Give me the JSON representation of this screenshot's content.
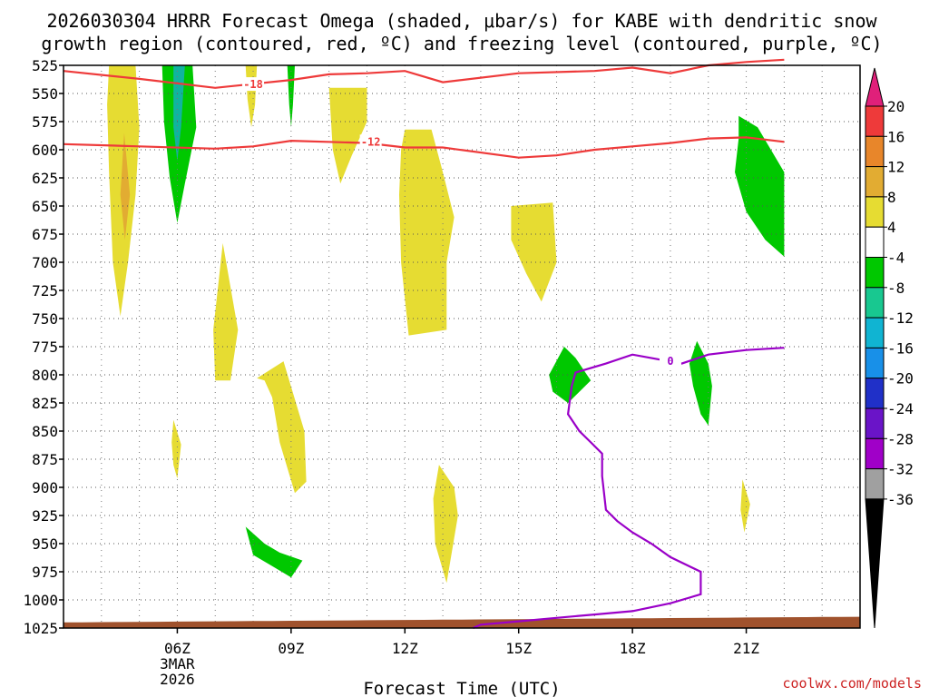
{
  "chart_data": {
    "type": "contour",
    "title_line1": "2026030304 HRRR Forecast Omega (shaded, μbar/s) for KABE with dendritic snow",
    "title_line2": "growth region (contoured, red, ºC) and freezing level (contoured, purple, ºC)",
    "xlabel": "Forecast Time (UTC)",
    "credit": "coolwx.com/models",
    "x_range_hours": [
      3,
      24
    ],
    "y_range_hpa": [
      525,
      1025
    ],
    "y_ticks": [
      525,
      550,
      575,
      600,
      625,
      650,
      675,
      700,
      725,
      750,
      775,
      800,
      825,
      850,
      875,
      900,
      925,
      950,
      975,
      1000,
      1025
    ],
    "x_ticks": [
      {
        "hour": 6,
        "label": "06Z"
      },
      {
        "hour": 9,
        "label": "09Z"
      },
      {
        "hour": 12,
        "label": "12Z"
      },
      {
        "hour": 15,
        "label": "15Z"
      },
      {
        "hour": 18,
        "label": "18Z"
      },
      {
        "hour": 21,
        "label": "21Z"
      }
    ],
    "date_labels": [
      "3MAR",
      "2026"
    ],
    "colorbar": {
      "labels": [
        "20",
        "16",
        "12",
        "8",
        "4",
        "-4",
        "-8",
        "-12",
        "-16",
        "-20",
        "-24",
        "-28",
        "-32",
        "-36"
      ],
      "colors": [
        "#ee3a3a",
        "#e8862a",
        "#e2ac32",
        "#e6dc32",
        "#ffffff",
        "#00c800",
        "#18c890",
        "#10b4d2",
        "#1890e8",
        "#2030c8",
        "#6a14c8",
        "#a000c8",
        "#a0a0a0"
      ],
      "top_color": "#e0207a",
      "bottom_color": "#000000"
    },
    "omega_regions": [
      {
        "name": "A",
        "level": "4",
        "points": [
          [
            4.2,
            525
          ],
          [
            4.9,
            525
          ],
          [
            5.0,
            580
          ],
          [
            4.9,
            640
          ],
          [
            4.7,
            700
          ],
          [
            4.5,
            748
          ],
          [
            4.3,
            700
          ],
          [
            4.2,
            620
          ],
          [
            4.15,
            560
          ]
        ]
      },
      {
        "name": "A-inner",
        "level": "8",
        "points": [
          [
            4.6,
            585
          ],
          [
            4.75,
            640
          ],
          [
            4.62,
            680
          ],
          [
            4.5,
            640
          ]
        ]
      },
      {
        "name": "B",
        "level": "-4",
        "points": [
          [
            5.6,
            525
          ],
          [
            6.4,
            525
          ],
          [
            6.5,
            580
          ],
          [
            6.2,
            630
          ],
          [
            6.0,
            665
          ],
          [
            5.8,
            625
          ],
          [
            5.65,
            575
          ]
        ]
      },
      {
        "name": "B-inner",
        "level": "-8",
        "points": [
          [
            5.9,
            525
          ],
          [
            6.2,
            525
          ],
          [
            6.1,
            580
          ],
          [
            6.0,
            610
          ],
          [
            5.9,
            580
          ]
        ]
      },
      {
        "name": "C",
        "level": "4",
        "points": [
          [
            7.8,
            525
          ],
          [
            8.1,
            525
          ],
          [
            8.05,
            560
          ],
          [
            7.95,
            580
          ],
          [
            7.85,
            555
          ]
        ]
      },
      {
        "name": "D",
        "level": "-4",
        "points": [
          [
            8.9,
            525
          ],
          [
            9.1,
            525
          ],
          [
            9.05,
            560
          ],
          [
            9.0,
            580
          ],
          [
            8.95,
            560
          ]
        ]
      },
      {
        "name": "E",
        "level": "4",
        "points": [
          [
            10.0,
            545
          ],
          [
            11.0,
            545
          ],
          [
            11.0,
            575
          ],
          [
            10.6,
            605
          ],
          [
            10.3,
            630
          ],
          [
            10.1,
            600
          ]
        ]
      },
      {
        "name": "F",
        "level": "4",
        "points": [
          [
            12.0,
            582
          ],
          [
            12.7,
            582
          ],
          [
            13.0,
            620
          ],
          [
            13.3,
            660
          ],
          [
            13.1,
            700
          ],
          [
            13.1,
            760
          ],
          [
            12.1,
            765
          ],
          [
            11.9,
            700
          ],
          [
            11.85,
            640
          ],
          [
            11.9,
            600
          ]
        ]
      },
      {
        "name": "G",
        "level": "4",
        "points": [
          [
            14.8,
            650
          ],
          [
            15.9,
            647
          ],
          [
            16.0,
            700
          ],
          [
            15.6,
            735
          ],
          [
            15.2,
            710
          ],
          [
            14.8,
            680
          ]
        ]
      },
      {
        "name": "H",
        "level": "4",
        "points": [
          [
            7.2,
            683
          ],
          [
            7.6,
            760
          ],
          [
            7.4,
            805
          ],
          [
            7.0,
            805
          ],
          [
            6.95,
            760
          ]
        ]
      },
      {
        "name": "I",
        "level": "4",
        "points": [
          [
            8.1,
            803
          ],
          [
            8.8,
            788
          ],
          [
            9.35,
            850
          ],
          [
            9.4,
            895
          ],
          [
            9.1,
            905
          ],
          [
            8.7,
            860
          ],
          [
            8.5,
            820
          ],
          [
            8.3,
            805
          ]
        ]
      },
      {
        "name": "J",
        "level": "4",
        "points": [
          [
            5.9,
            840
          ],
          [
            6.1,
            862
          ],
          [
            6.0,
            892
          ],
          [
            5.9,
            880
          ],
          [
            5.85,
            860
          ]
        ]
      },
      {
        "name": "K",
        "level": "-4",
        "points": [
          [
            7.8,
            935
          ],
          [
            8.3,
            950
          ],
          [
            8.7,
            958
          ],
          [
            9.3,
            965
          ],
          [
            9.0,
            980
          ],
          [
            8.5,
            970
          ],
          [
            8.0,
            960
          ]
        ]
      },
      {
        "name": "L",
        "level": "4",
        "points": [
          [
            12.9,
            880
          ],
          [
            13.3,
            900
          ],
          [
            13.4,
            925
          ],
          [
            13.1,
            985
          ],
          [
            12.8,
            950
          ],
          [
            12.75,
            910
          ]
        ]
      },
      {
        "name": "M",
        "level": "-4",
        "points": [
          [
            16.2,
            775
          ],
          [
            16.5,
            785
          ],
          [
            16.9,
            805
          ],
          [
            16.3,
            825
          ],
          [
            15.9,
            815
          ],
          [
            15.8,
            800
          ]
        ]
      },
      {
        "name": "N",
        "level": "-4",
        "points": [
          [
            19.7,
            770
          ],
          [
            20.0,
            790
          ],
          [
            20.1,
            810
          ],
          [
            20.0,
            845
          ],
          [
            19.8,
            835
          ],
          [
            19.6,
            810
          ],
          [
            19.5,
            790
          ]
        ]
      },
      {
        "name": "O",
        "level": "4",
        "points": [
          [
            20.9,
            893
          ],
          [
            21.1,
            915
          ],
          [
            20.95,
            940
          ],
          [
            20.85,
            920
          ]
        ]
      },
      {
        "name": "P",
        "level": "-4",
        "points": [
          [
            20.8,
            570
          ],
          [
            21.3,
            580
          ],
          [
            22.0,
            620
          ],
          [
            22.0,
            695
          ],
          [
            21.5,
            680
          ],
          [
            21.0,
            655
          ],
          [
            20.7,
            620
          ],
          [
            20.8,
            590
          ]
        ]
      }
    ],
    "contours_red": [
      {
        "label": "-18",
        "points": [
          [
            3,
            530
          ],
          [
            5,
            537
          ],
          [
            7,
            545
          ],
          [
            9,
            538
          ],
          [
            10,
            533
          ],
          [
            11,
            532
          ],
          [
            12,
            530
          ],
          [
            13,
            540
          ],
          [
            15,
            532
          ],
          [
            17,
            530
          ],
          [
            18,
            527
          ],
          [
            19,
            532
          ],
          [
            20,
            525
          ],
          [
            21,
            522
          ],
          [
            22,
            520
          ]
        ]
      },
      {
        "label": "-12",
        "points": [
          [
            3,
            595
          ],
          [
            5,
            597
          ],
          [
            7,
            599
          ],
          [
            8,
            597
          ],
          [
            9,
            592
          ],
          [
            11,
            594
          ],
          [
            12,
            598
          ],
          [
            13,
            598
          ],
          [
            15,
            607
          ],
          [
            16,
            605
          ],
          [
            17,
            600
          ],
          [
            18,
            597
          ],
          [
            19,
            594
          ],
          [
            20,
            590
          ],
          [
            21,
            589
          ],
          [
            22,
            593
          ]
        ]
      }
    ],
    "contours_purple": [
      {
        "label": "0",
        "points": [
          [
            22,
            776
          ],
          [
            21,
            778
          ],
          [
            20,
            782
          ],
          [
            19.3,
            790
          ],
          [
            18.0,
            782
          ],
          [
            17.3,
            790
          ],
          [
            16.5,
            798
          ],
          [
            16.4,
            810
          ],
          [
            16.3,
            835
          ],
          [
            16.6,
            850
          ],
          [
            16.9,
            860
          ],
          [
            17.2,
            870
          ],
          [
            17.2,
            890
          ],
          [
            17.3,
            920
          ],
          [
            17.6,
            930
          ],
          [
            18.0,
            940
          ],
          [
            18.5,
            950
          ],
          [
            19.0,
            962
          ],
          [
            19.8,
            975
          ],
          [
            19.8,
            995
          ],
          [
            19.0,
            1003
          ],
          [
            18.0,
            1010
          ],
          [
            17.0,
            1013
          ],
          [
            16.0,
            1016
          ],
          [
            15.0,
            1019
          ],
          [
            14.0,
            1022
          ],
          [
            13.8,
            1025
          ]
        ]
      }
    ],
    "terrain_color": "#a0522d"
  }
}
